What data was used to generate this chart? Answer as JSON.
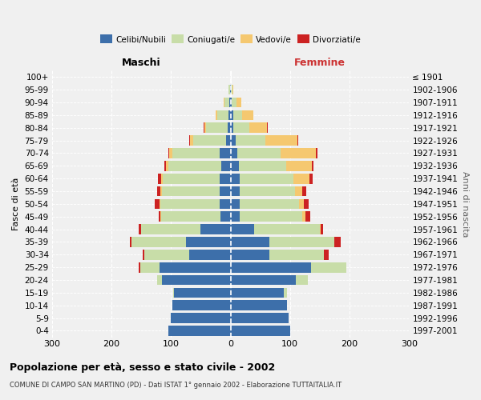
{
  "age_groups": [
    "0-4",
    "5-9",
    "10-14",
    "15-19",
    "20-24",
    "25-29",
    "30-34",
    "35-39",
    "40-44",
    "45-49",
    "50-54",
    "55-59",
    "60-64",
    "65-69",
    "70-74",
    "75-79",
    "80-84",
    "85-89",
    "90-94",
    "95-99",
    "100+"
  ],
  "birth_years": [
    "1997-2001",
    "1992-1996",
    "1987-1991",
    "1982-1986",
    "1977-1981",
    "1972-1976",
    "1967-1971",
    "1962-1966",
    "1957-1961",
    "1952-1956",
    "1947-1951",
    "1942-1946",
    "1937-1941",
    "1932-1936",
    "1927-1931",
    "1922-1926",
    "1917-1921",
    "1912-1916",
    "1907-1911",
    "1902-1906",
    "≤ 1901"
  ],
  "males": {
    "celibi": [
      104,
      101,
      98,
      95,
      115,
      120,
      70,
      75,
      50,
      17,
      18,
      18,
      18,
      16,
      18,
      8,
      5,
      4,
      2,
      1,
      0
    ],
    "coniugati": [
      0,
      0,
      0,
      2,
      8,
      32,
      75,
      92,
      100,
      100,
      100,
      98,
      96,
      88,
      80,
      55,
      36,
      19,
      8,
      2,
      0
    ],
    "vedovi": [
      0,
      0,
      0,
      0,
      0,
      0,
      0,
      0,
      0,
      1,
      2,
      2,
      3,
      5,
      5,
      5,
      3,
      2,
      1,
      0,
      0
    ],
    "divorziati": [
      0,
      0,
      0,
      0,
      0,
      3,
      3,
      2,
      4,
      3,
      7,
      6,
      5,
      2,
      1,
      1,
      1,
      0,
      0,
      0,
      0
    ]
  },
  "females": {
    "nubili": [
      100,
      98,
      95,
      90,
      110,
      135,
      65,
      65,
      40,
      16,
      15,
      16,
      16,
      14,
      12,
      8,
      5,
      4,
      2,
      1,
      0
    ],
    "coniugate": [
      0,
      0,
      0,
      5,
      20,
      60,
      92,
      110,
      110,
      105,
      100,
      92,
      90,
      80,
      72,
      50,
      26,
      16,
      8,
      2,
      0
    ],
    "vedove": [
      0,
      0,
      0,
      0,
      0,
      0,
      0,
      0,
      2,
      5,
      8,
      12,
      26,
      42,
      60,
      55,
      30,
      18,
      8,
      1,
      0
    ],
    "divorziate": [
      0,
      0,
      0,
      0,
      0,
      0,
      8,
      10,
      3,
      8,
      8,
      7,
      6,
      3,
      2,
      1,
      1,
      0,
      0,
      0,
      0
    ]
  },
  "colors": {
    "celibi_nubili": "#3d6faa",
    "coniugati_e": "#c8dda8",
    "vedovi_e": "#f5c870",
    "divorziati_e": "#cc2222"
  },
  "xlim": 300,
  "title": "Popolazione per età, sesso e stato civile - 2002",
  "subtitle": "COMUNE DI CAMPO SAN MARTINO (PD) - Dati ISTAT 1° gennaio 2002 - Elaborazione TUTTAITALIA.IT",
  "ylabel_left": "Fasce di età",
  "ylabel_right": "Anni di nascita",
  "xlabel_left": "Maschi",
  "xlabel_right": "Femmine",
  "legend_labels": [
    "Celibi/Nubili",
    "Coniugati/e",
    "Vedovi/e",
    "Divorziati/e"
  ],
  "bg_color": "#f0f0f0"
}
